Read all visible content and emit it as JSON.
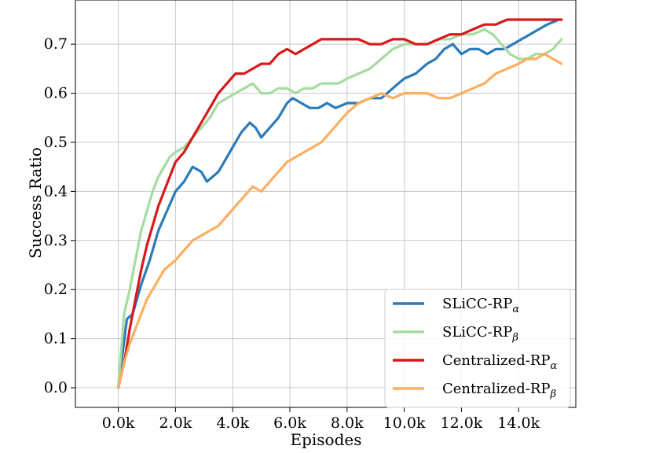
{
  "chart_data": {
    "type": "line",
    "title": "",
    "xlabel": "Episodes",
    "ylabel": "Success Ratio",
    "xlim": [
      -1500,
      16000
    ],
    "ylim": [
      -0.04,
      0.79
    ],
    "x_ticks": [
      0,
      2000,
      4000,
      6000,
      8000,
      10000,
      12000,
      14000
    ],
    "x_tick_labels": [
      "0.0k",
      "2.0k",
      "4.0k",
      "6.0k",
      "8.0k",
      "10.0k",
      "12.0k",
      "14.0k"
    ],
    "y_ticks": [
      0.0,
      0.1,
      0.2,
      0.3,
      0.4,
      0.5,
      0.6,
      0.7
    ],
    "y_tick_labels": [
      "0.0",
      "0.1",
      "0.2",
      "0.3",
      "0.4",
      "0.5",
      "0.6",
      "0.7"
    ],
    "grid": true,
    "legend_position": "lower-right",
    "series": [
      {
        "name": "SLiCC-RP",
        "subscript": "α",
        "color": "#2b7bb9",
        "x": [
          0,
          300,
          500,
          800,
          1100,
          1400,
          1700,
          2000,
          2300,
          2600,
          2900,
          3100,
          3300,
          3500,
          3700,
          4000,
          4300,
          4600,
          4800,
          5000,
          5300,
          5600,
          5900,
          6100,
          6400,
          6700,
          7000,
          7300,
          7600,
          8000,
          8400,
          8800,
          9200,
          9600,
          10000,
          10400,
          10800,
          11100,
          11400,
          11700,
          12000,
          12300,
          12600,
          12900,
          13200,
          13500,
          13800,
          14100,
          14400,
          14700,
          15000,
          15400
        ],
        "y": [
          0.0,
          0.14,
          0.15,
          0.21,
          0.26,
          0.32,
          0.36,
          0.4,
          0.42,
          0.45,
          0.44,
          0.42,
          0.43,
          0.44,
          0.46,
          0.49,
          0.52,
          0.54,
          0.53,
          0.51,
          0.53,
          0.55,
          0.58,
          0.59,
          0.58,
          0.57,
          0.57,
          0.58,
          0.57,
          0.58,
          0.58,
          0.59,
          0.59,
          0.61,
          0.63,
          0.64,
          0.66,
          0.67,
          0.69,
          0.7,
          0.68,
          0.69,
          0.69,
          0.68,
          0.69,
          0.69,
          0.7,
          0.71,
          0.72,
          0.73,
          0.74,
          0.75
        ]
      },
      {
        "name": "SLiCC-RP",
        "subscript": "β",
        "color": "#a6dba0",
        "x": [
          0,
          200,
          400,
          600,
          800,
          1000,
          1200,
          1400,
          1600,
          1800,
          2000,
          2300,
          2600,
          2900,
          3200,
          3500,
          3800,
          4100,
          4400,
          4700,
          5000,
          5300,
          5600,
          5900,
          6200,
          6500,
          6800,
          7100,
          7400,
          7700,
          8000,
          8400,
          8800,
          9200,
          9600,
          10000,
          10400,
          10800,
          11200,
          11600,
          12000,
          12400,
          12800,
          13100,
          13400,
          13700,
          14000,
          14300,
          14600,
          14900,
          15200,
          15500
        ],
        "y": [
          0.0,
          0.15,
          0.2,
          0.26,
          0.32,
          0.36,
          0.4,
          0.43,
          0.45,
          0.47,
          0.48,
          0.49,
          0.51,
          0.53,
          0.55,
          0.58,
          0.59,
          0.6,
          0.61,
          0.62,
          0.6,
          0.6,
          0.61,
          0.61,
          0.6,
          0.61,
          0.61,
          0.62,
          0.62,
          0.62,
          0.63,
          0.64,
          0.65,
          0.67,
          0.69,
          0.7,
          0.7,
          0.7,
          0.71,
          0.71,
          0.72,
          0.72,
          0.73,
          0.72,
          0.7,
          0.68,
          0.67,
          0.67,
          0.68,
          0.68,
          0.69,
          0.71
        ]
      },
      {
        "name": "Centralized-RP",
        "subscript": "α",
        "color": "#d7191c",
        "x": [
          0,
          200,
          400,
          600,
          800,
          1000,
          1200,
          1400,
          1600,
          1800,
          2000,
          2300,
          2600,
          2900,
          3200,
          3500,
          3800,
          4100,
          4400,
          4700,
          5000,
          5300,
          5600,
          5900,
          6200,
          6500,
          6800,
          7100,
          7400,
          7700,
          8000,
          8400,
          8800,
          9200,
          9600,
          10000,
          10400,
          10800,
          11200,
          11600,
          12000,
          12400,
          12800,
          13200,
          13600,
          14000,
          14300,
          14600,
          14900,
          15200,
          15500
        ],
        "y": [
          0.0,
          0.05,
          0.12,
          0.18,
          0.24,
          0.29,
          0.33,
          0.37,
          0.4,
          0.43,
          0.46,
          0.48,
          0.51,
          0.54,
          0.57,
          0.6,
          0.62,
          0.64,
          0.64,
          0.65,
          0.66,
          0.66,
          0.68,
          0.69,
          0.68,
          0.69,
          0.7,
          0.71,
          0.71,
          0.71,
          0.71,
          0.71,
          0.7,
          0.7,
          0.71,
          0.71,
          0.7,
          0.7,
          0.71,
          0.72,
          0.72,
          0.73,
          0.74,
          0.74,
          0.75,
          0.75,
          0.75,
          0.75,
          0.75,
          0.75,
          0.75
        ]
      },
      {
        "name": "Centralized-RP",
        "subscript": "β",
        "color": "#fdae61",
        "x": [
          0,
          200,
          400,
          600,
          800,
          1000,
          1200,
          1400,
          1600,
          1800,
          2000,
          2300,
          2600,
          2900,
          3200,
          3500,
          3800,
          4100,
          4400,
          4700,
          5000,
          5300,
          5600,
          5900,
          6200,
          6500,
          6800,
          7100,
          7400,
          7700,
          8000,
          8400,
          8800,
          9200,
          9600,
          10000,
          10400,
          10800,
          11200,
          11600,
          12000,
          12400,
          12800,
          13200,
          13600,
          14000,
          14300,
          14600,
          14900,
          15200,
          15500
        ],
        "y": [
          0.0,
          0.05,
          0.09,
          0.12,
          0.15,
          0.18,
          0.2,
          0.22,
          0.24,
          0.25,
          0.26,
          0.28,
          0.3,
          0.31,
          0.32,
          0.33,
          0.35,
          0.37,
          0.39,
          0.41,
          0.4,
          0.42,
          0.44,
          0.46,
          0.47,
          0.48,
          0.49,
          0.5,
          0.52,
          0.54,
          0.56,
          0.58,
          0.59,
          0.6,
          0.59,
          0.6,
          0.6,
          0.6,
          0.59,
          0.59,
          0.6,
          0.61,
          0.62,
          0.64,
          0.65,
          0.66,
          0.67,
          0.67,
          0.68,
          0.67,
          0.66
        ]
      }
    ]
  }
}
